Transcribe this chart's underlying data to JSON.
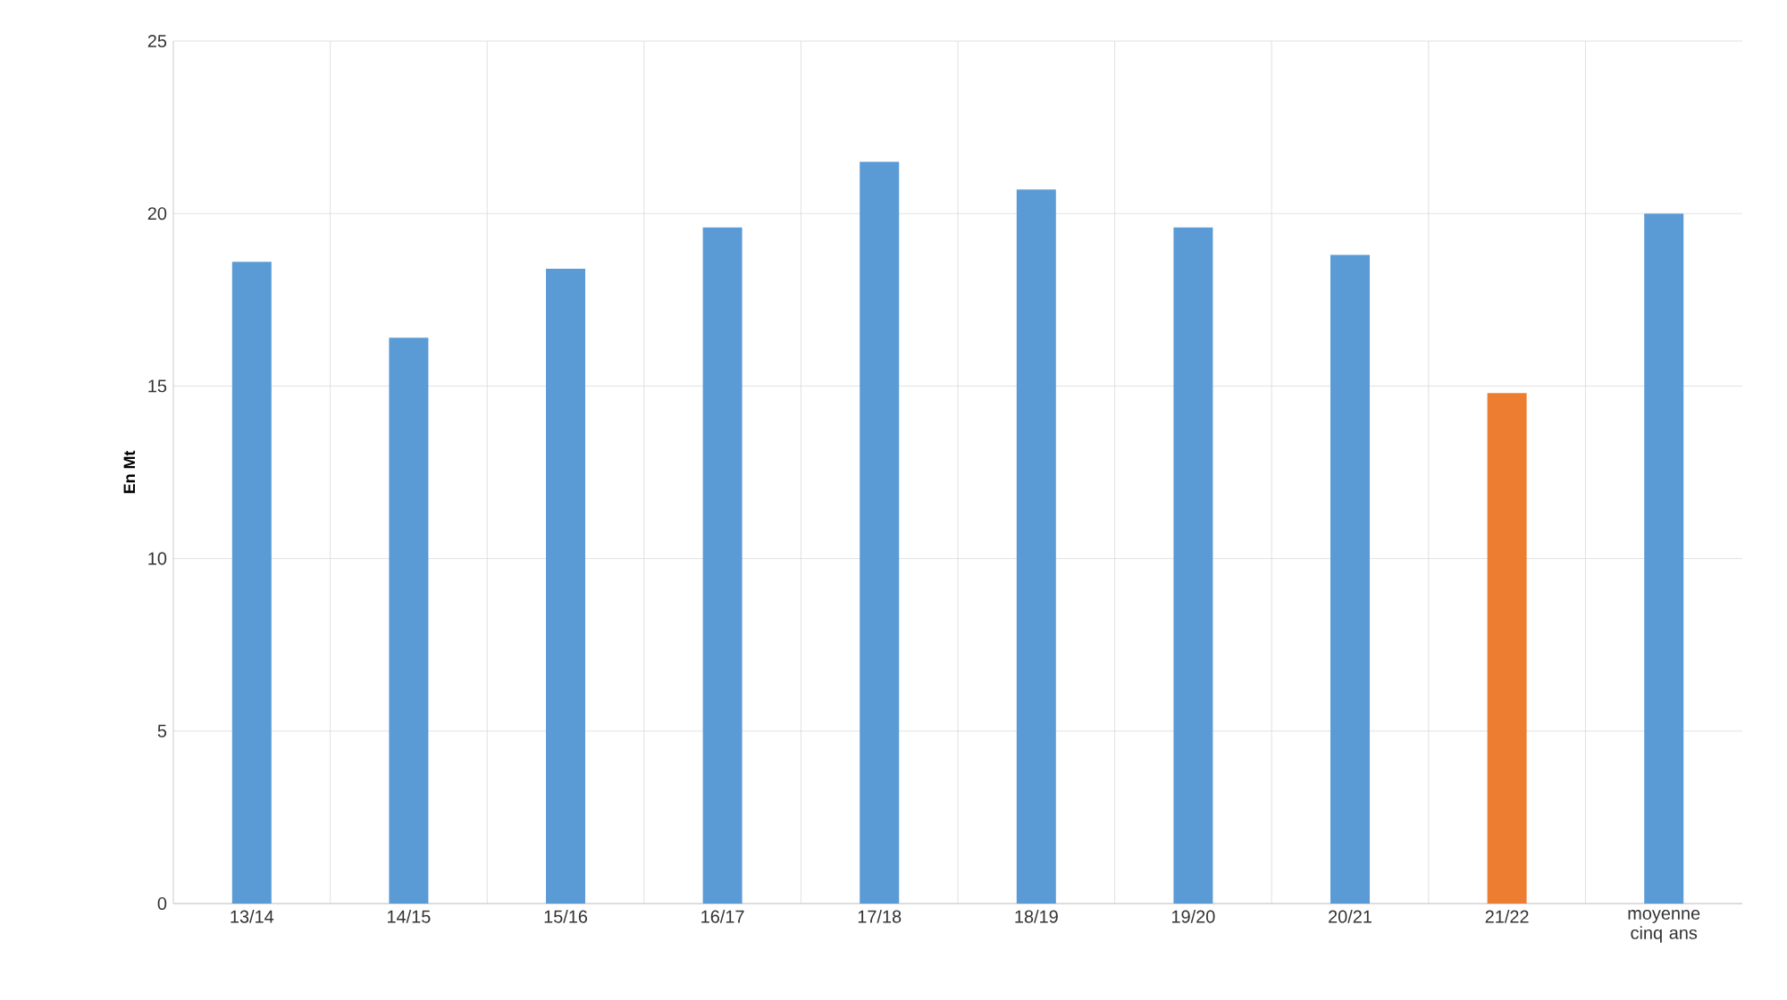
{
  "chart_data": {
    "type": "bar",
    "ylabel": "En Mt",
    "categories": [
      "13/14",
      "14/15",
      "15/16",
      "16/17",
      "17/18",
      "18/19",
      "19/20",
      "20/21",
      "21/22",
      "moyenne cinq ans"
    ],
    "values": [
      18.6,
      16.4,
      18.4,
      19.6,
      21.5,
      20.7,
      19.6,
      18.8,
      14.8,
      20.0
    ],
    "colors": [
      "#5b9bd5",
      "#5b9bd5",
      "#5b9bd5",
      "#5b9bd5",
      "#5b9bd5",
      "#5b9bd5",
      "#5b9bd5",
      "#5b9bd5",
      "#ed7d31",
      "#5b9bd5"
    ],
    "ylim": [
      0,
      25
    ],
    "yticks": [
      0,
      5,
      10,
      15,
      20,
      25
    ],
    "grid": true
  }
}
